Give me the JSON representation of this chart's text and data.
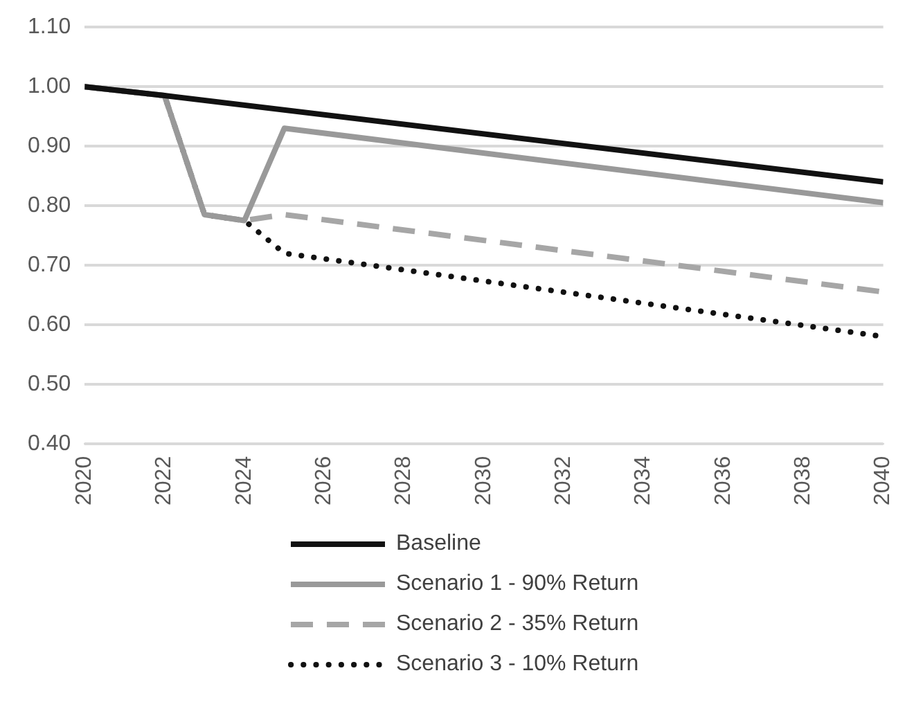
{
  "chart_data": {
    "type": "line",
    "xlim": [
      2020,
      2040
    ],
    "xticks": [
      2020,
      2022,
      2024,
      2026,
      2028,
      2030,
      2032,
      2034,
      2036,
      2038,
      2040
    ],
    "ylim": [
      0.4,
      1.1
    ],
    "yticks": [
      {
        "value": 0.4,
        "label": "0.40"
      },
      {
        "value": 0.5,
        "label": "0.50"
      },
      {
        "value": 0.6,
        "label": "0.60"
      },
      {
        "value": 0.7,
        "label": "0.70"
      },
      {
        "value": 0.8,
        "label": "0.80"
      },
      {
        "value": 0.9,
        "label": "0.90"
      },
      {
        "value": 1.0,
        "label": "1.00"
      },
      {
        "value": 1.1,
        "label": "1.10"
      }
    ],
    "grid": "y",
    "legend": "bottom",
    "marker": "none",
    "series": [
      {
        "name": "Baseline",
        "color": "#111111",
        "line_style": "solid",
        "x": [
          2020,
          2022,
          2040
        ],
        "values": [
          1.0,
          0.985,
          0.84
        ]
      },
      {
        "name": "Scenario 1 - 90% Return",
        "color": "#999999",
        "line_style": "solid",
        "x": [
          2020,
          2022,
          2023,
          2024,
          2025,
          2040
        ],
        "values": [
          1.0,
          0.985,
          0.785,
          0.775,
          0.93,
          0.805
        ]
      },
      {
        "name": "Scenario 2 - 35% Return",
        "color": "#a6a6a6",
        "line_style": "dashed",
        "x": [
          2020,
          2022,
          2023,
          2024,
          2025,
          2040
        ],
        "values": [
          1.0,
          0.985,
          0.785,
          0.775,
          0.785,
          0.655
        ]
      },
      {
        "name": "Scenario 3 - 10% Return",
        "color": "#111111",
        "line_style": "dotted",
        "x": [
          2020,
          2022,
          2023,
          2024,
          2025,
          2040
        ],
        "values": [
          1.0,
          0.985,
          0.785,
          0.775,
          0.72,
          0.58
        ]
      }
    ]
  }
}
